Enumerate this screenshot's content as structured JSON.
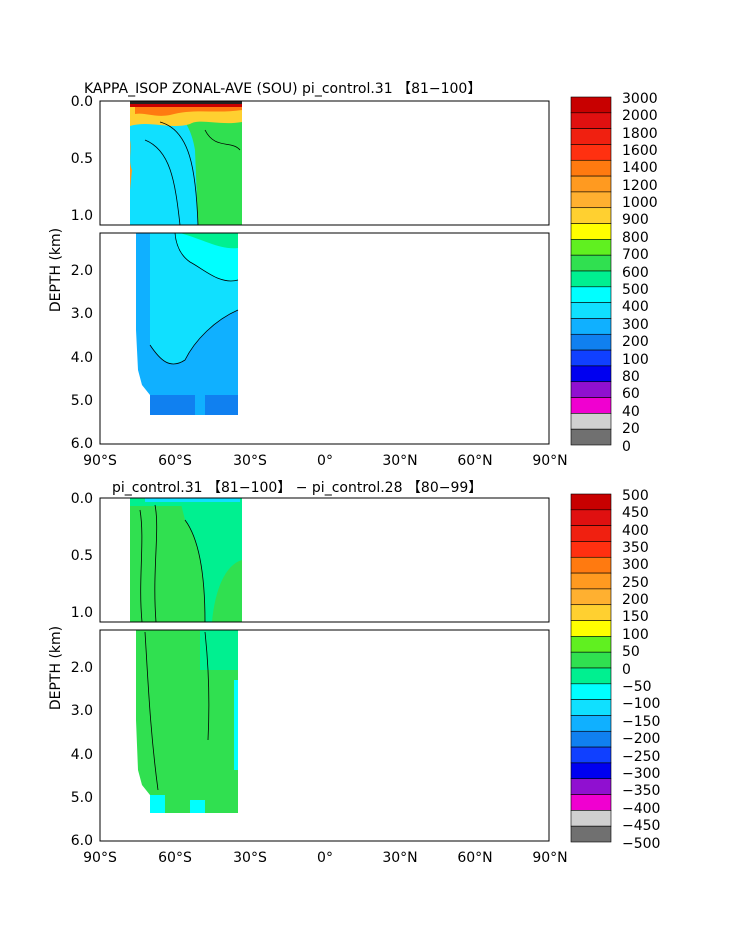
{
  "chart_data": [
    {
      "type": "heatmap",
      "title": "KAPPA_ISOP ZONAL-AVE (SOU) pi_control.31 【81−100】",
      "ylabel": "DEPTH (km)",
      "x_ticks": [
        "90°S",
        "60°S",
        "30°S",
        "0°",
        "30°N",
        "60°N",
        "90°N"
      ],
      "xlim": [
        -90,
        90
      ],
      "y_ticks_upper": [
        "0.0",
        "0.5",
        "1.0"
      ],
      "y_ticks_lower": [
        "2.0",
        "3.0",
        "4.0",
        "5.0",
        "6.0"
      ],
      "ylim": [
        0,
        6
      ],
      "colorbar": {
        "labels": [
          "3000",
          "2000",
          "1800",
          "1600",
          "1400",
          "1200",
          "1000",
          "900",
          "800",
          "700",
          "600",
          "500",
          "400",
          "300",
          "200",
          "100",
          "80",
          "60",
          "40",
          "20",
          "0"
        ],
        "colors": [
          "#c80000",
          "#e01010",
          "#f02010",
          "#ff3010",
          "#ff7a10",
          "#ff9a20",
          "#ffb030",
          "#ffd030",
          "#ffff00",
          "#60f020",
          "#30e050",
          "#00f090",
          "#00ffff",
          "#10e0ff",
          "#10b0ff",
          "#1080f0",
          "#1040ff",
          "#0000f0",
          "#9010d0",
          "#f000d0",
          "#d0d0d0",
          "#707070"
        ]
      }
    },
    {
      "type": "heatmap",
      "title": "pi_control.31 【81−100】 − pi_control.28 【80−99】",
      "ylabel": "DEPTH (km)",
      "x_ticks": [
        "90°S",
        "60°S",
        "30°S",
        "0°",
        "30°N",
        "60°N",
        "90°N"
      ],
      "xlim": [
        -90,
        90
      ],
      "y_ticks_upper": [
        "0.0",
        "0.5",
        "1.0"
      ],
      "y_ticks_lower": [
        "2.0",
        "3.0",
        "4.0",
        "5.0",
        "6.0"
      ],
      "ylim": [
        0,
        6
      ],
      "colorbar": {
        "labels": [
          "500",
          "450",
          "400",
          "350",
          "300",
          "250",
          "200",
          "150",
          "100",
          "50",
          "0",
          "−50",
          "−100",
          "−150",
          "−200",
          "−250",
          "−300",
          "−350",
          "−400",
          "−450",
          "−500"
        ],
        "colors": [
          "#c80000",
          "#e01010",
          "#f02010",
          "#ff3010",
          "#ff7a10",
          "#ff9a20",
          "#ffb030",
          "#ffd030",
          "#ffff00",
          "#60f020",
          "#30e050",
          "#00f090",
          "#00ffff",
          "#10e0ff",
          "#10b0ff",
          "#1080f0",
          "#1040ff",
          "#0000f0",
          "#9010d0",
          "#f000d0",
          "#d0d0d0",
          "#707070"
        ]
      }
    }
  ]
}
